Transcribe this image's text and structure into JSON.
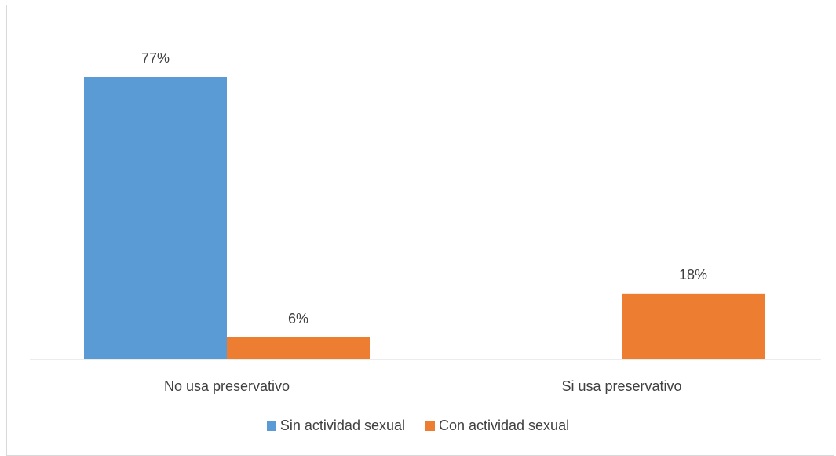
{
  "chart_data": {
    "type": "bar",
    "categories": [
      "No usa preservativo",
      "Si usa preservativo"
    ],
    "series": [
      {
        "name": "Sin actividad sexual",
        "values": [
          77,
          0
        ],
        "labels": [
          "77%",
          ""
        ],
        "color": "#5b9bd5"
      },
      {
        "name": "Con actividad sexual",
        "values": [
          6,
          18
        ],
        "labels": [
          "6%",
          "18%"
        ],
        "color": "#ed7d31"
      }
    ],
    "ylim": [
      0,
      77
    ],
    "legend": "bottom",
    "grid": false
  }
}
